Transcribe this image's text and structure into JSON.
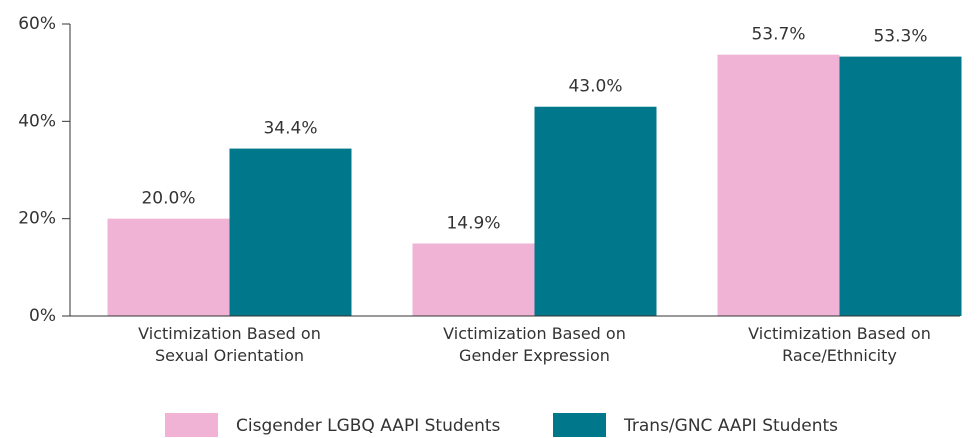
{
  "chart_data": {
    "type": "bar",
    "categories": [
      "Victimization Based on\nSexual Orientation",
      "Victimization Based on\nGender Expression",
      "Victimization Based on\nRace/Ethnicity"
    ],
    "series": [
      {
        "name": "Cisgender LGBQ AAPI Students",
        "color": "#f0b3d6",
        "values": [
          20.0,
          14.9,
          53.7
        ],
        "value_labels": [
          "20.0%",
          "14.9%",
          "53.7%"
        ]
      },
      {
        "name": "Trans/GNC AAPI Students",
        "color": "#00778a",
        "values": [
          34.4,
          43.0,
          53.3
        ],
        "value_labels": [
          "34.4%",
          "43.0%",
          "53.3%"
        ]
      }
    ],
    "ylim": [
      0,
      60
    ],
    "yticks": [
      {
        "value": 0,
        "label": "0%"
      },
      {
        "value": 20,
        "label": "20%"
      },
      {
        "value": 40,
        "label": "40%"
      },
      {
        "value": 60,
        "label": "60%"
      }
    ],
    "legend": "bottom"
  }
}
